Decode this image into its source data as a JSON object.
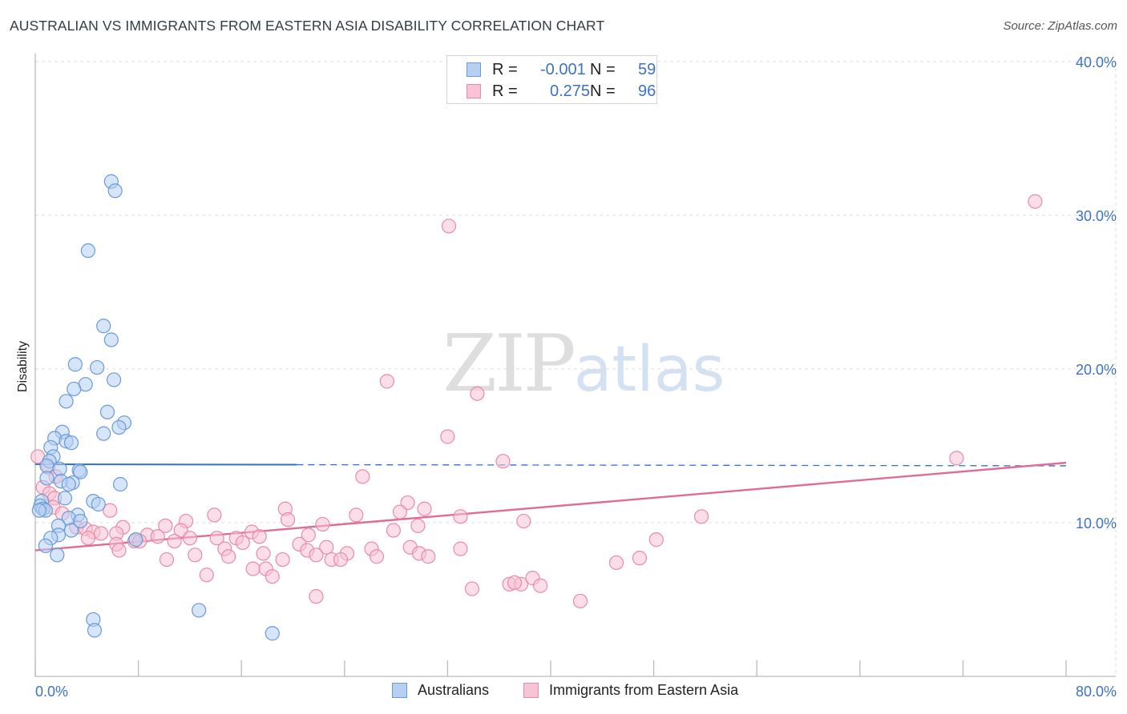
{
  "header": {
    "title": "AUSTRALIAN VS IMMIGRANTS FROM EASTERN ASIA DISABILITY CORRELATION CHART",
    "source": "Source: ZipAtlas.com"
  },
  "watermark": {
    "zip": "ZIP",
    "atlas": "atlas"
  },
  "legend_top": {
    "row1": {
      "r_label": "R =",
      "r_value": "-0.001",
      "n_label": "N =",
      "n_value": "59"
    },
    "row2": {
      "r_label": "R =",
      "r_value": "0.275",
      "n_label": "N =",
      "n_value": "96"
    }
  },
  "legend_bottom": {
    "series1": "Australians",
    "series2": "Immigrants from Eastern Asia"
  },
  "colors": {
    "blue_fill": "#b7d0f2",
    "blue_stroke": "#6a9ad8",
    "blue_line": "#2f6fd0",
    "pink_fill": "#f8c3d4",
    "pink_stroke": "#e98aa9",
    "pink_line": "#e06c96",
    "tick_text": "#3d72c4",
    "grid": "#dcdcdc"
  },
  "chart_data": {
    "type": "scatter",
    "title": "AUSTRALIAN VS IMMIGRANTS FROM EASTERN ASIA DISABILITY CORRELATION CHART",
    "xlabel": "",
    "ylabel": "Disability",
    "xlim": [
      0,
      80
    ],
    "ylim": [
      0,
      40
    ],
    "x_tick_labels": [
      "0.0%",
      "80.0%"
    ],
    "y_ticks": [
      10,
      20,
      30,
      40
    ],
    "y_tick_labels": [
      "10.0%",
      "20.0%",
      "30.0%",
      "40.0%"
    ],
    "grid": true,
    "legend_position": "top-center",
    "series": [
      {
        "name": "Australians",
        "color": "#6a9ad8",
        "r": -0.001,
        "n": 59,
        "trend": {
          "x": [
            0,
            80
          ],
          "y": [
            13.8,
            13.7
          ],
          "solid_until_x": 20.3
        },
        "points": [
          [
            5.9,
            32.2
          ],
          [
            6.2,
            31.6
          ],
          [
            4.1,
            27.7
          ],
          [
            5.3,
            22.8
          ],
          [
            5.9,
            21.9
          ],
          [
            3.1,
            20.3
          ],
          [
            4.8,
            20.1
          ],
          [
            6.1,
            19.3
          ],
          [
            3.9,
            19.0
          ],
          [
            3.0,
            18.7
          ],
          [
            2.4,
            17.9
          ],
          [
            5.6,
            17.2
          ],
          [
            6.9,
            16.5
          ],
          [
            6.5,
            16.2
          ],
          [
            2.1,
            15.9
          ],
          [
            5.3,
            15.8
          ],
          [
            1.5,
            15.5
          ],
          [
            2.4,
            15.3
          ],
          [
            2.8,
            15.2
          ],
          [
            1.2,
            14.9
          ],
          [
            1.4,
            14.3
          ],
          [
            1.1,
            14.0
          ],
          [
            0.9,
            13.7
          ],
          [
            1.9,
            13.5
          ],
          [
            3.4,
            13.4
          ],
          [
            3.5,
            13.3
          ],
          [
            0.9,
            12.9
          ],
          [
            2.0,
            12.7
          ],
          [
            2.9,
            12.6
          ],
          [
            2.6,
            12.5
          ],
          [
            6.6,
            12.5
          ],
          [
            2.3,
            11.6
          ],
          [
            0.5,
            11.4
          ],
          [
            4.5,
            11.4
          ],
          [
            4.9,
            11.2
          ],
          [
            0.4,
            11.1
          ],
          [
            0.6,
            10.9
          ],
          [
            0.8,
            10.8
          ],
          [
            0.3,
            10.8
          ],
          [
            3.3,
            10.5
          ],
          [
            2.6,
            10.3
          ],
          [
            3.5,
            10.1
          ],
          [
            1.8,
            9.8
          ],
          [
            2.8,
            9.5
          ],
          [
            1.8,
            9.2
          ],
          [
            1.2,
            9.0
          ],
          [
            7.8,
            8.9
          ],
          [
            0.8,
            8.5
          ],
          [
            1.7,
            7.9
          ],
          [
            12.7,
            4.3
          ],
          [
            4.5,
            3.7
          ],
          [
            4.6,
            3.0
          ],
          [
            18.4,
            2.8
          ]
        ]
      },
      {
        "name": "Immigrants from Eastern Asia",
        "color": "#e98aa9",
        "r": 0.275,
        "n": 96,
        "trend": {
          "x": [
            0,
            80
          ],
          "y": [
            8.2,
            13.9
          ]
        },
        "points": [
          [
            77.6,
            30.9
          ],
          [
            32.1,
            29.3
          ],
          [
            27.3,
            19.2
          ],
          [
            34.3,
            18.4
          ],
          [
            32.0,
            15.6
          ],
          [
            71.5,
            14.2
          ],
          [
            36.3,
            14.0
          ],
          [
            0.2,
            14.3
          ],
          [
            1.0,
            13.6
          ],
          [
            1.6,
            13.0
          ],
          [
            25.4,
            13.0
          ],
          [
            0.6,
            12.3
          ],
          [
            1.1,
            11.9
          ],
          [
            1.5,
            11.6
          ],
          [
            1.4,
            11.0
          ],
          [
            28.9,
            11.3
          ],
          [
            2.1,
            10.6
          ],
          [
            5.8,
            10.8
          ],
          [
            19.4,
            10.9
          ],
          [
            28.3,
            10.7
          ],
          [
            30.2,
            10.9
          ],
          [
            13.9,
            10.5
          ],
          [
            24.9,
            10.5
          ],
          [
            33.0,
            10.4
          ],
          [
            51.7,
            10.4
          ],
          [
            11.7,
            10.1
          ],
          [
            3.2,
            9.7
          ],
          [
            3.9,
            9.6
          ],
          [
            6.8,
            9.7
          ],
          [
            10.1,
            9.8
          ],
          [
            19.6,
            10.2
          ],
          [
            22.3,
            9.9
          ],
          [
            29.7,
            9.8
          ],
          [
            37.9,
            10.1
          ],
          [
            4.5,
            9.4
          ],
          [
            5.1,
            9.3
          ],
          [
            6.3,
            9.3
          ],
          [
            8.7,
            9.2
          ],
          [
            9.5,
            9.1
          ],
          [
            11.3,
            9.5
          ],
          [
            14.1,
            9.0
          ],
          [
            15.6,
            9.0
          ],
          [
            16.8,
            9.4
          ],
          [
            17.4,
            9.1
          ],
          [
            21.2,
            9.2
          ],
          [
            27.8,
            9.5
          ],
          [
            48.2,
            8.9
          ],
          [
            4.1,
            9.0
          ],
          [
            7.7,
            8.8
          ],
          [
            8.1,
            8.8
          ],
          [
            10.8,
            8.8
          ],
          [
            12.0,
            9.0
          ],
          [
            16.1,
            8.7
          ],
          [
            20.5,
            8.6
          ],
          [
            22.6,
            8.4
          ],
          [
            24.2,
            8.0
          ],
          [
            26.1,
            8.3
          ],
          [
            29.1,
            8.4
          ],
          [
            33.0,
            8.3
          ],
          [
            6.3,
            8.6
          ],
          [
            6.5,
            8.2
          ],
          [
            10.2,
            7.6
          ],
          [
            12.4,
            7.9
          ],
          [
            14.7,
            8.3
          ],
          [
            15.0,
            7.8
          ],
          [
            17.7,
            8.0
          ],
          [
            19.2,
            7.6
          ],
          [
            21.1,
            8.2
          ],
          [
            21.8,
            7.9
          ],
          [
            23.0,
            7.6
          ],
          [
            23.7,
            7.6
          ],
          [
            26.5,
            7.8
          ],
          [
            29.8,
            8.0
          ],
          [
            30.5,
            7.8
          ],
          [
            46.9,
            7.7
          ],
          [
            45.1,
            7.4
          ],
          [
            16.9,
            7.0
          ],
          [
            17.9,
            7.0
          ],
          [
            18.4,
            6.5
          ],
          [
            13.3,
            6.6
          ],
          [
            36.8,
            6.0
          ],
          [
            37.7,
            6.0
          ],
          [
            38.6,
            6.4
          ],
          [
            39.2,
            5.9
          ],
          [
            37.2,
            6.1
          ],
          [
            33.9,
            5.7
          ],
          [
            21.8,
            5.2
          ],
          [
            42.3,
            4.9
          ]
        ]
      }
    ]
  }
}
